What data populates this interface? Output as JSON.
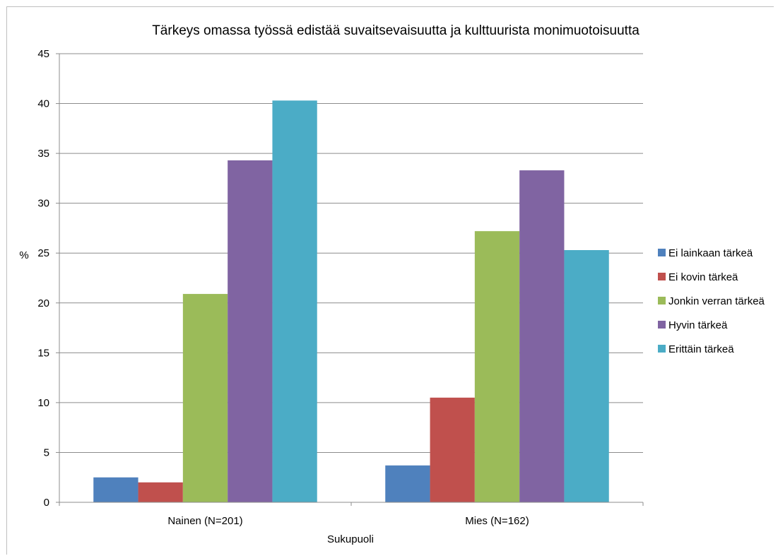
{
  "chart_data": {
    "type": "bar",
    "title": "Tärkeys omassa työssä edistää suvaitsevaisuutta ja kulttuurista monimuotoisuutta",
    "xlabel": "Sukupuoli",
    "ylabel": "%",
    "categories": [
      "Nainen (N=201)",
      "Mies (N=162)"
    ],
    "ylim": [
      0,
      45
    ],
    "yticks": [
      0,
      5,
      10,
      15,
      20,
      25,
      30,
      35,
      40,
      45
    ],
    "grid": true,
    "legend_position": "right",
    "series": [
      {
        "name": "Ei lainkaan tärkeä",
        "color": "#4f81bd",
        "values": [
          2.5,
          3.7
        ]
      },
      {
        "name": "Ei kovin tärkeä",
        "color": "#c0504d",
        "values": [
          2.0,
          10.5
        ]
      },
      {
        "name": "Jonkin verran tärkeä",
        "color": "#9bbb59",
        "values": [
          20.9,
          27.2
        ]
      },
      {
        "name": "Hyvin tärkeä",
        "color": "#8064a2",
        "values": [
          34.3,
          33.3
        ]
      },
      {
        "name": "Erittäin tärkeä",
        "color": "#4bacc6",
        "values": [
          40.3,
          25.3
        ]
      }
    ]
  }
}
